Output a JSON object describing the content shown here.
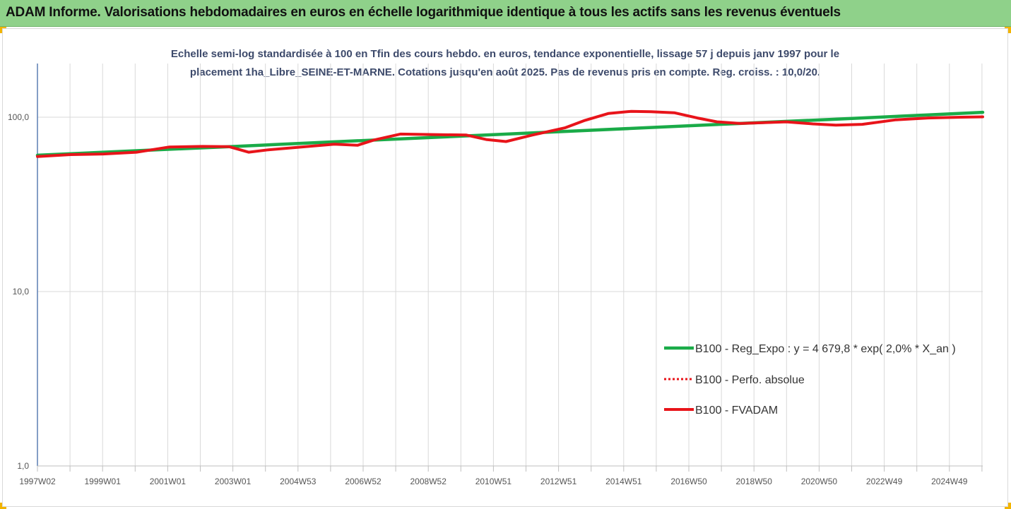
{
  "header": {
    "title": "ADAM Informe. Valorisations hebdomadaires en euros en échelle logarithmique identique à tous les actifs sans les revenus éventuels"
  },
  "colors": {
    "banner": "#8fd18a",
    "accent_corner": "#f2b400",
    "regression": "#1aab48",
    "fvadam": "#e8141a",
    "perfo": "#e8141a",
    "subtitle": "#3d4a6b",
    "grid": "#d9d9d9"
  },
  "chart_data": {
    "type": "line",
    "title_line1": "Echelle semi-log standardisée à 100 en Tfin des cours hebdo. en euros, tendance exponentielle, lissage 57 j depuis janv 1997 pour le",
    "title_line2": "placement 1ha_Libre_SEINE-ET-MARNE. Cotations jusqu'en août 2025. Pas de revenus pris en compte. Reg. croiss. : 10,0/20.",
    "y_scale": "log",
    "ylim": [
      1,
      200
    ],
    "y_ticks": [
      {
        "value": 1,
        "label": "1,0"
      },
      {
        "value": 10,
        "label": "10,0"
      },
      {
        "value": 100,
        "label": "100,0"
      }
    ],
    "x_tick_labels": [
      "1997W02",
      "1999W01",
      "2001W01",
      "2003W01",
      "2004W53",
      "2006W52",
      "2008W52",
      "2010W51",
      "2012W51",
      "2014W51",
      "2016W50",
      "2018W50",
      "2020W50",
      "2022W49",
      "2024W49"
    ],
    "x_range": [
      1997.0,
      2025.65
    ],
    "grid": "vertical",
    "legend_position": "right-middle",
    "series": [
      {
        "name": "B100 - Reg_Expo : y = 4 679,8 * exp( 2,0% *  X_an )",
        "style": "solid-green",
        "x": [
          1997.0,
          2000.0,
          2003.0,
          2006.0,
          2009.0,
          2012.0,
          2015.0,
          2018.0,
          2021.0,
          2024.0,
          2025.65
        ],
        "y": [
          60.5,
          64.2,
          68.0,
          72.2,
          76.6,
          81.3,
          86.2,
          91.5,
          97.1,
          103.0,
          106.6
        ]
      },
      {
        "name": "B100 - Perfo. absolue",
        "style": "dotted-red",
        "x": [],
        "y": []
      },
      {
        "name": "B100 - FVADAM",
        "style": "solid-red",
        "x": [
          1997.0,
          1998.0,
          1999.0,
          2000.0,
          2001.0,
          2002.0,
          2002.8,
          2003.4,
          2004.0,
          2005.0,
          2006.0,
          2006.7,
          2007.2,
          2008.0,
          2009.0,
          2010.0,
          2010.6,
          2011.2,
          2012.0,
          2013.0,
          2013.6,
          2014.3,
          2015.0,
          2015.6,
          2016.3,
          2017.0,
          2017.6,
          2018.3,
          2019.0,
          2019.7,
          2020.5,
          2021.2,
          2022.0,
          2023.0,
          2024.0,
          2025.0,
          2025.65
        ],
        "y": [
          59.5,
          61.0,
          61.5,
          63.0,
          67.5,
          68.0,
          67.8,
          63.0,
          65.0,
          67.5,
          70.0,
          69.0,
          74.0,
          80.0,
          79.5,
          79.0,
          74.5,
          72.5,
          79.0,
          87.0,
          96.0,
          105.0,
          108.0,
          107.5,
          106.0,
          99.0,
          94.0,
          92.0,
          93.0,
          94.0,
          91.5,
          90.0,
          91.0,
          96.5,
          99.0,
          100.0,
          100.5
        ]
      }
    ]
  }
}
